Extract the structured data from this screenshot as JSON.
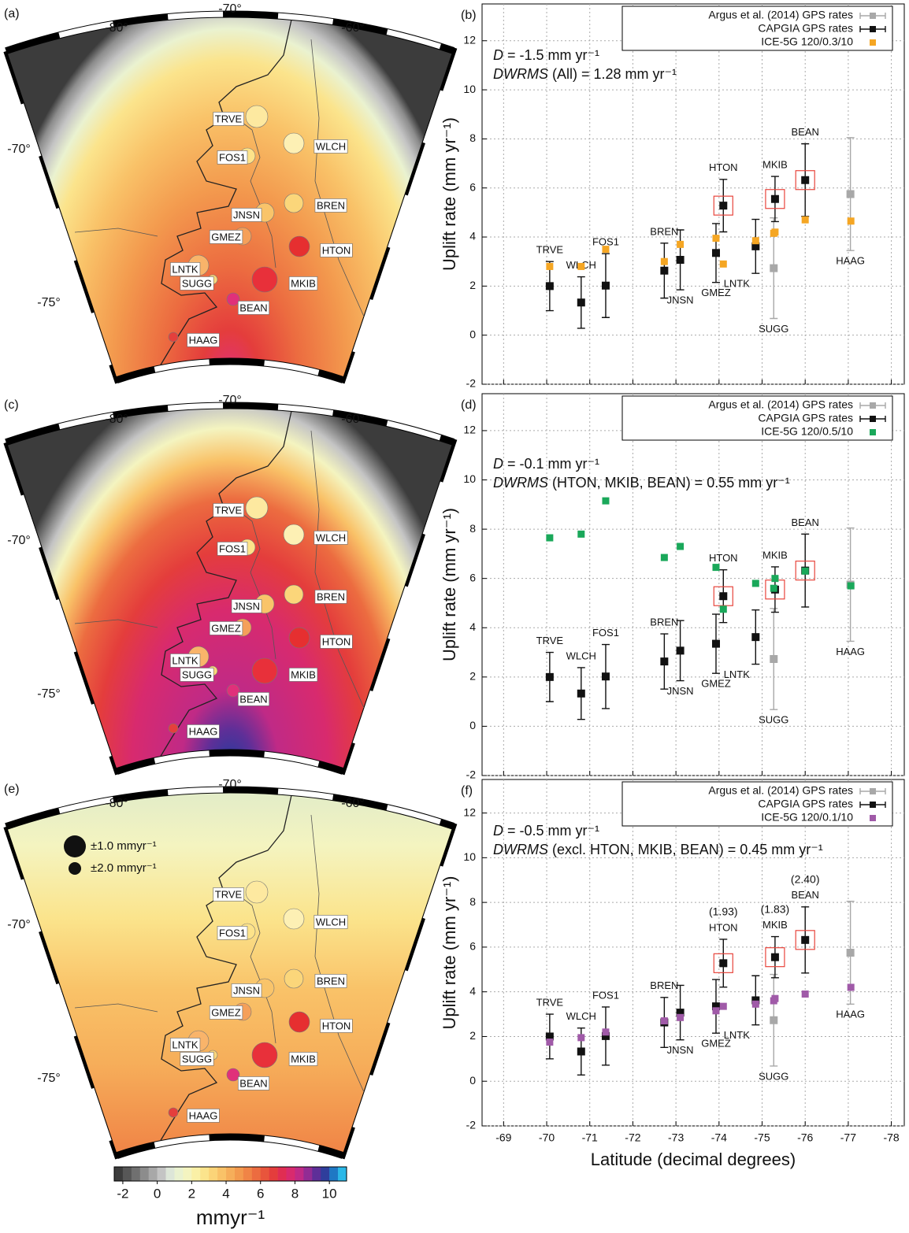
{
  "maps": [
    {
      "panel": "(a)",
      "lon_labels": [
        "-80°",
        "-70°",
        "-60°"
      ],
      "lat_labels": [
        "-70°",
        "-75°"
      ]
    },
    {
      "panel": "(c)",
      "lon_labels": [
        "-80°",
        "-70°",
        "-60°"
      ],
      "lat_labels": [
        "-70°",
        "-75°"
      ]
    },
    {
      "panel": "(e)",
      "lon_labels": [
        "-80°",
        "-70°",
        "-60°"
      ],
      "lat_labels": [
        "-70°",
        "-75°"
      ],
      "legend": [
        "±1.0 mmyr⁻¹",
        "±2.0 mmyr⁻¹"
      ]
    }
  ],
  "sites": [
    {
      "label": "TRVE",
      "color": "#fde9a0"
    },
    {
      "label": "WLCH",
      "color": "#fdf0b4"
    },
    {
      "label": "FOS1",
      "color": "#fde38a"
    },
    {
      "label": "JNSN",
      "color": "#f9c46a"
    },
    {
      "label": "BREN",
      "color": "#fbd67a"
    },
    {
      "label": "GMEZ",
      "color": "#f5a05a"
    },
    {
      "label": "HTON",
      "color": "#e62f30"
    },
    {
      "label": "LNTK",
      "color": "#f9b46a"
    },
    {
      "label": "SUGG",
      "color": "#fbd67a"
    },
    {
      "label": "MKIB",
      "color": "#e8303a"
    },
    {
      "label": "BEAN",
      "color": "#e0307a"
    },
    {
      "label": "HAAG",
      "color": "#e43f3c"
    }
  ],
  "colorbar": {
    "lim": [
      -2.5,
      11
    ],
    "ticks": [
      -2,
      0,
      2,
      4,
      6,
      8,
      10
    ],
    "colors": [
      "#3c3c3c",
      "#575757",
      "#707070",
      "#8c8c8c",
      "#a8a8a8",
      "#c4c4c4",
      "#dde6d8",
      "#eaf2d0",
      "#f4f4c0",
      "#faf0a6",
      "#fbe48c",
      "#fbd478",
      "#f9c268",
      "#f6ae5a",
      "#f39a4e",
      "#f08446",
      "#ec6c40",
      "#e8553c",
      "#e43d3c",
      "#e02d52",
      "#d82a6e",
      "#c02a86",
      "#922c94",
      "#5e2f98",
      "#2f3e9c",
      "#1e78c4",
      "#2ab8e8"
    ],
    "label": "mmyr⁻¹"
  },
  "chart_data": [
    {
      "type": "scatter",
      "panel": "(b)",
      "ylabel": "Uplift rate (mm yr⁻¹)",
      "xlim": [
        -68.5,
        -78.3
      ],
      "xticks": [
        -69,
        -70,
        -71,
        -72,
        -73,
        -74,
        -75,
        -76,
        -77,
        -78
      ],
      "show_xtick_labels": false,
      "ylim": [
        -2,
        13.5
      ],
      "yticks": [
        -2,
        0,
        2,
        4,
        6,
        8,
        10,
        12
      ],
      "grid": true,
      "notes": [
        {
          "italic": "D",
          "text": " = -1.5 mm yr⁻¹"
        },
        {
          "italic": "DWRMS",
          "text": " (All) = 1.28 mm yr⁻¹"
        }
      ],
      "series": [
        {
          "name": "Argus et al. (2014) GPS rates",
          "color": "#a8a8a8",
          "x": [
            -75.27,
            -77.05
          ],
          "values": [
            2.73,
            5.75
          ],
          "errors": [
            2.05,
            2.3
          ],
          "labels": [
            "SUGG",
            "HAAG"
          ]
        },
        {
          "name": "CAPGIA GPS rates",
          "color": "#111111",
          "x": [
            -70.07,
            -70.8,
            -71.37,
            -72.73,
            -73.1,
            -73.93,
            -74.1,
            -74.85,
            -75.3,
            -76.0
          ],
          "values": [
            2.0,
            1.33,
            2.02,
            2.63,
            3.07,
            3.35,
            5.28,
            3.62,
            5.55,
            6.32
          ],
          "errors": [
            1.0,
            1.05,
            1.3,
            1.12,
            1.22,
            1.2,
            1.07,
            1.1,
            0.92,
            1.48
          ],
          "labels": [
            "TRVE",
            "WLCH",
            "FOS1",
            "BREN",
            "JNSN",
            "GMEZ",
            "HTON",
            "LNTK",
            "MKIB",
            "BEAN"
          ]
        },
        {
          "name": "ICE-5G 120/0.3/10",
          "color": "#f5a623",
          "x": [
            -70.07,
            -70.8,
            -71.37,
            -72.73,
            -73.1,
            -73.93,
            -74.1,
            -74.85,
            -75.3,
            -75.27,
            -76.0,
            -77.06
          ],
          "values": [
            2.8,
            2.8,
            3.5,
            3.0,
            3.7,
            3.95,
            2.9,
            3.85,
            4.2,
            4.15,
            4.7,
            4.65
          ]
        }
      ]
    },
    {
      "type": "scatter",
      "panel": "(d)",
      "ylabel": "Uplift rate (mm yr⁻¹)",
      "xlim": [
        -68.5,
        -78.3
      ],
      "xticks": [
        -69,
        -70,
        -71,
        -72,
        -73,
        -74,
        -75,
        -76,
        -77,
        -78
      ],
      "show_xtick_labels": false,
      "ylim": [
        -2,
        13.5
      ],
      "yticks": [
        -2,
        0,
        2,
        4,
        6,
        8,
        10,
        12
      ],
      "grid": true,
      "notes": [
        {
          "italic": "D",
          "text": " = -0.1 mm yr⁻¹"
        },
        {
          "italic": "DWRMS",
          "text": " (HTON, MKIB, BEAN) = 0.55 mm yr⁻¹"
        }
      ],
      "series": [
        {
          "name": "Argus et al. (2014) GPS rates",
          "color": "#a8a8a8",
          "x": [
            -75.27,
            -77.05
          ],
          "values": [
            2.73,
            5.75
          ],
          "errors": [
            2.05,
            2.3
          ],
          "labels": [
            "SUGG",
            "HAAG"
          ]
        },
        {
          "name": "CAPGIA GPS rates",
          "color": "#111111",
          "x": [
            -70.07,
            -70.8,
            -71.37,
            -72.73,
            -73.1,
            -73.93,
            -74.1,
            -74.85,
            -75.3,
            -76.0
          ],
          "values": [
            2.0,
            1.33,
            2.02,
            2.63,
            3.07,
            3.35,
            5.28,
            3.62,
            5.55,
            6.32
          ],
          "errors": [
            1.0,
            1.05,
            1.3,
            1.12,
            1.22,
            1.2,
            1.07,
            1.1,
            0.92,
            1.48
          ],
          "labels": [
            "TRVE",
            "WLCH",
            "FOS1",
            "BREN",
            "JNSN",
            "GMEZ",
            "HTON",
            "LNTK",
            "MKIB",
            "BEAN"
          ]
        },
        {
          "name": "ICE-5G 120/0.5/10",
          "color": "#1aa85a",
          "x": [
            -70.07,
            -70.8,
            -71.37,
            -72.73,
            -73.1,
            -73.93,
            -74.1,
            -74.85,
            -75.3,
            -75.27,
            -76.0,
            -77.06
          ],
          "values": [
            7.65,
            7.8,
            9.15,
            6.85,
            7.3,
            6.45,
            4.75,
            5.8,
            6.0,
            5.6,
            6.3,
            5.7
          ]
        }
      ]
    },
    {
      "type": "scatter",
      "panel": "(f)",
      "ylabel": "Uplift rate (mm yr⁻¹)",
      "xlabel": "Latitude (decimal degrees)",
      "xlim": [
        -68.5,
        -78.3
      ],
      "xticks": [
        -69,
        -70,
        -71,
        -72,
        -73,
        -74,
        -75,
        -76,
        -77,
        -78
      ],
      "show_xtick_labels": true,
      "ylim": [
        -2,
        13.5
      ],
      "yticks": [
        -2,
        0,
        2,
        4,
        6,
        8,
        10,
        12
      ],
      "grid": true,
      "notes": [
        {
          "italic": "D",
          "text": " = -0.5 mm yr⁻¹"
        },
        {
          "italic": "DWRMS",
          "text": " (excl. HTON, MKIB, BEAN) = 0.45 mm yr⁻¹"
        }
      ],
      "annotations": [
        "(1.93)",
        "(1.83)",
        "(2.40)"
      ],
      "series": [
        {
          "name": "Argus et al. (2014) GPS rates",
          "color": "#a8a8a8",
          "x": [
            -75.27,
            -77.05
          ],
          "values": [
            2.73,
            5.75
          ],
          "errors": [
            2.05,
            2.3
          ],
          "labels": [
            "SUGG",
            "HAAG"
          ]
        },
        {
          "name": "CAPGIA GPS rates",
          "color": "#111111",
          "x": [
            -70.07,
            -70.8,
            -71.37,
            -72.73,
            -73.1,
            -73.93,
            -74.1,
            -74.85,
            -75.3,
            -76.0
          ],
          "values": [
            2.0,
            1.33,
            2.02,
            2.63,
            3.07,
            3.35,
            5.28,
            3.62,
            5.55,
            6.32
          ],
          "errors": [
            1.0,
            1.05,
            1.3,
            1.12,
            1.22,
            1.2,
            1.07,
            1.1,
            0.92,
            1.48
          ],
          "labels": [
            "TRVE",
            "WLCH",
            "FOS1",
            "BREN",
            "JNSN",
            "GMEZ",
            "HTON",
            "LNTK",
            "MKIB",
            "BEAN"
          ]
        },
        {
          "name": "ICE-5G 120/0.1/10",
          "color": "#a05aa8",
          "x": [
            -70.07,
            -70.8,
            -71.37,
            -72.73,
            -73.1,
            -73.93,
            -74.1,
            -74.85,
            -75.3,
            -75.27,
            -76.0,
            -77.06
          ],
          "values": [
            1.75,
            1.95,
            2.2,
            2.7,
            2.85,
            3.15,
            3.35,
            3.45,
            3.7,
            3.6,
            3.9,
            4.2
          ]
        }
      ]
    }
  ]
}
